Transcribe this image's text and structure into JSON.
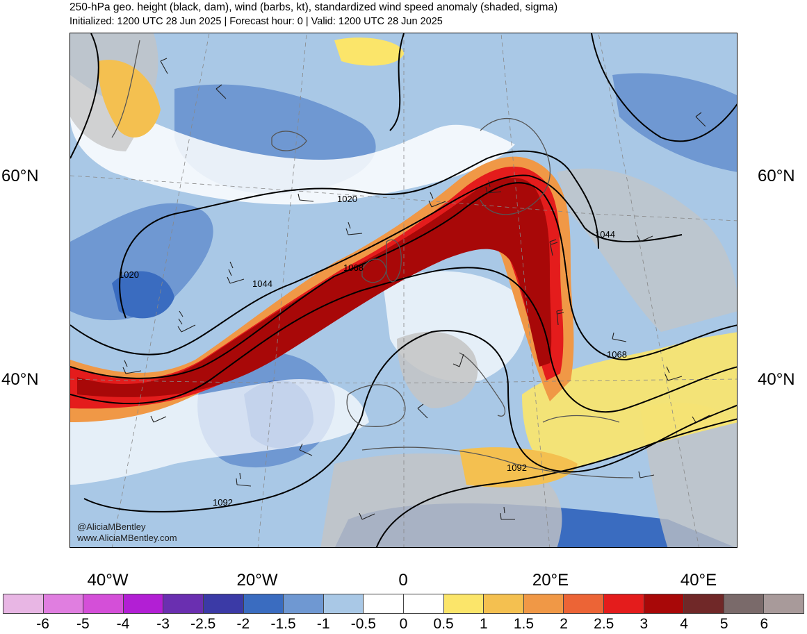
{
  "title": "250-hPa geo. height (black, dam), wind (barbs, kt), standardized wind speed anomaly (shaded, sigma)",
  "subtitle": "Initialized: 1200 UTC 28 Jun 2025 | Forecast hour: 0 | Valid: 1200 UTC 28 Jun 2025",
  "credit": {
    "handle": "@AliciaMBentley",
    "site": "www.AliciaMBentley.com"
  },
  "lat_labels": {
    "left_60": "60°N",
    "right_60": "60°N",
    "left_40": "40°N",
    "right_40": "40°N"
  },
  "lon_labels": [
    "40°W",
    "20°W",
    "0",
    "20°E",
    "40°E"
  ],
  "contour_labels": {
    "c1020a": "1020",
    "c1020b": "1020",
    "c1044a": "1044",
    "c1044b": "1044",
    "c1068a": "1068",
    "c1068b": "1068",
    "c1092a": "1092",
    "c1092b": "1092"
  },
  "colorbar": {
    "ticks": [
      "-6",
      "-5",
      "-4",
      "-3",
      "-2.5",
      "-2",
      "-1.5",
      "-1",
      "-0.5",
      "0",
      "0.5",
      "1",
      "1.5",
      "2",
      "2.5",
      "3",
      "4",
      "5",
      "6"
    ],
    "colors": [
      "#e8b6e4",
      "#e07ee0",
      "#d44fd8",
      "#b21fd4",
      "#6a2fb0",
      "#3b3aa6",
      "#3a6cc0",
      "#6f98d2",
      "#a9c8e6",
      "#ffffff",
      "#ffffff",
      "#fbe56a",
      "#f4c050",
      "#f09846",
      "#ec6436",
      "#e41c1c",
      "#a80808",
      "#702828",
      "#7a6a6a",
      "#a89a9a"
    ]
  }
}
